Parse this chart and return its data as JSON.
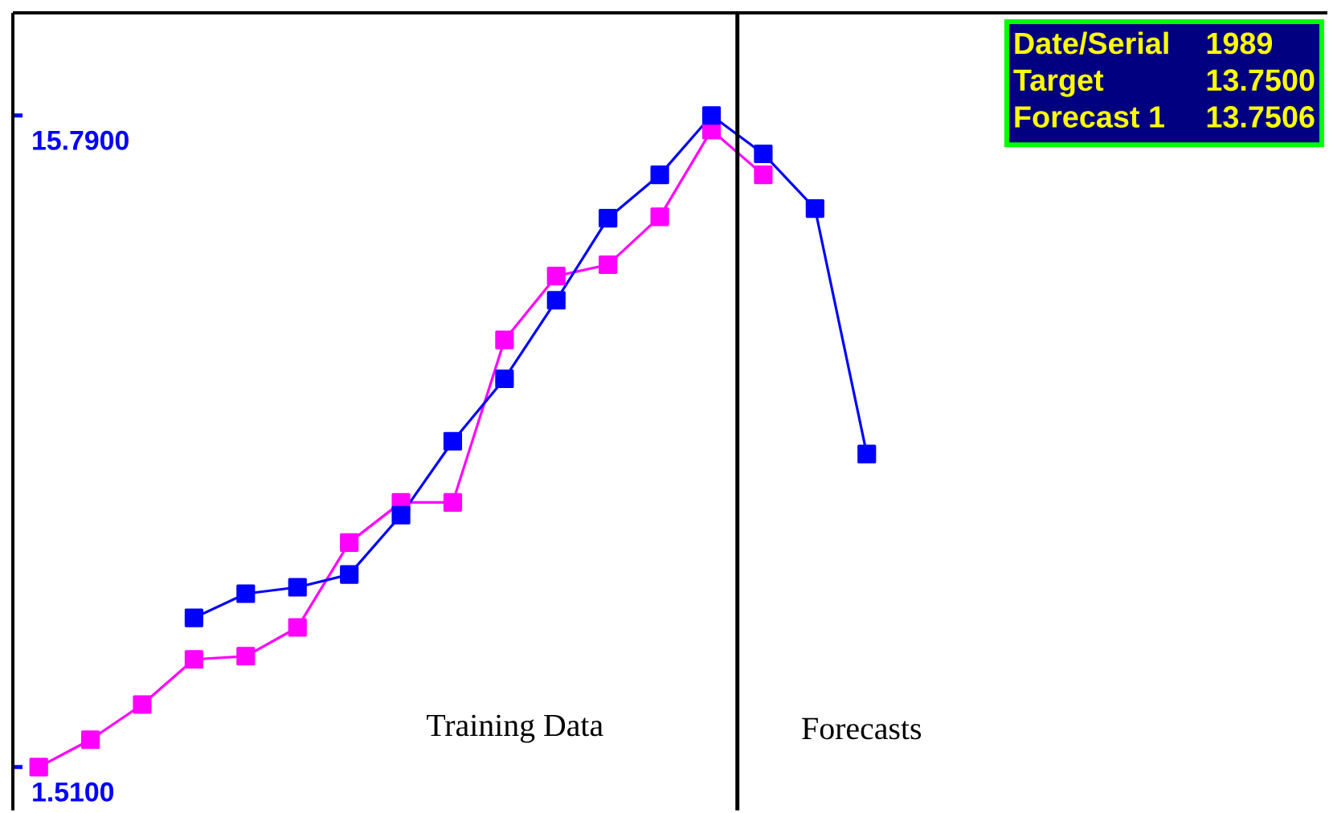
{
  "chart_data": {
    "type": "line",
    "categories": [
      null,
      null,
      null,
      null,
      null,
      null,
      null,
      null,
      null,
      null,
      null,
      null,
      null,
      null,
      null,
      null,
      null
    ],
    "series": [
      {
        "color": "#ff00ff",
        "values": [
          1.51,
          2.11,
          2.88,
          3.87,
          3.94,
          4.57,
          6.43,
          7.31,
          7.31,
          10.87,
          12.27,
          12.52,
          13.57,
          15.47,
          14.49,
          null,
          null
        ]
      },
      {
        "color": "#0000ff",
        "values": [
          null,
          null,
          null,
          4.78,
          5.31,
          5.45,
          5.73,
          7.03,
          8.65,
          10.02,
          11.74,
          13.54,
          14.49,
          15.79,
          14.95,
          13.75,
          8.37
        ]
      }
    ],
    "ylim": [
      0.56,
      18.04
    ],
    "yticks": [
      {
        "value": 15.79,
        "label": "15.7900"
      },
      {
        "value": 1.51,
        "label": "1.5100"
      }
    ],
    "tick_labels": "y",
    "marker": "square",
    "line_style": "solid",
    "grid": false,
    "annotations": [
      "Date/Serial",
      "1989",
      "Target",
      "13.7500",
      "Forecast 1",
      "13.7506",
      "Training Data",
      "Forecasts"
    ]
  }
}
